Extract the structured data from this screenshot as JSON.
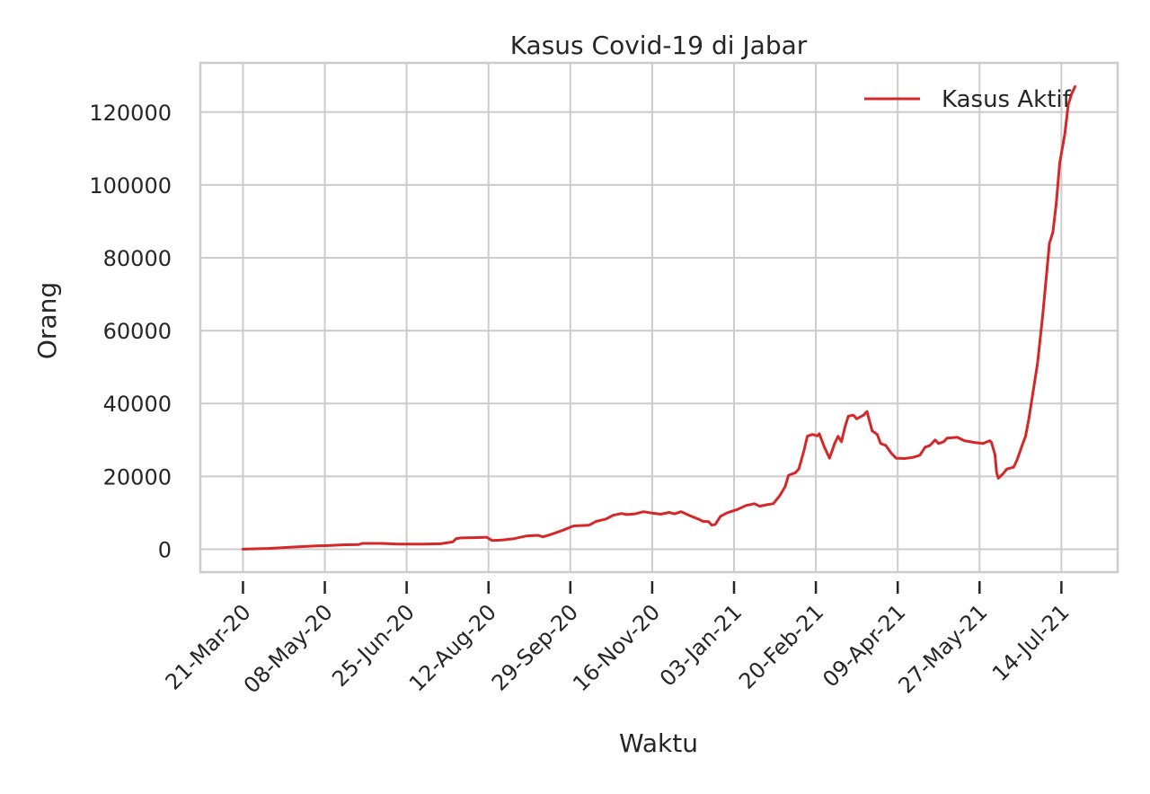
{
  "chart_data": {
    "type": "line",
    "title": "Kasus Covid-19 di Jabar",
    "xlabel": "Waktu",
    "ylabel": "Orang",
    "x_start": "2020-03-21",
    "x_end": "2021-07-22",
    "xlim": [
      "2020-02-25",
      "2021-08-16"
    ],
    "ylim": [
      -6300,
      133500
    ],
    "x_ticks": [
      "2020-03-21",
      "2020-05-08",
      "2020-06-25",
      "2020-08-12",
      "2020-09-29",
      "2020-11-16",
      "2021-01-03",
      "2021-02-20",
      "2021-04-09",
      "2021-05-27",
      "2021-07-14"
    ],
    "x_tick_labels": [
      "21-Mar-20",
      "08-May-20",
      "25-Jun-20",
      "12-Aug-20",
      "29-Sep-20",
      "16-Nov-20",
      "03-Jan-21",
      "20-Feb-21",
      "09-Apr-21",
      "27-May-21",
      "14-Jul-21"
    ],
    "y_ticks": [
      0,
      20000,
      40000,
      60000,
      80000,
      100000,
      120000
    ],
    "y_tick_labels": [
      "0",
      "20000",
      "40000",
      "60000",
      "80000",
      "100000",
      "120000"
    ],
    "grid": true,
    "legend": "top-right",
    "series": [
      {
        "name": "Kasus Aktif",
        "color": "#d62728",
        "points": [
          [
            "2020-03-21",
            0
          ],
          [
            "2020-04-05",
            200
          ],
          [
            "2020-04-20",
            600
          ],
          [
            "2020-05-03",
            900
          ],
          [
            "2020-05-10",
            1000
          ],
          [
            "2020-05-18",
            1200
          ],
          [
            "2020-05-28",
            1300
          ],
          [
            "2020-05-30",
            1600
          ],
          [
            "2020-06-10",
            1600
          ],
          [
            "2020-06-20",
            1400
          ],
          [
            "2020-07-05",
            1400
          ],
          [
            "2020-07-15",
            1500
          ],
          [
            "2020-07-22",
            2000
          ],
          [
            "2020-07-24",
            2900
          ],
          [
            "2020-07-27",
            3100
          ],
          [
            "2020-08-06",
            3200
          ],
          [
            "2020-08-11",
            3300
          ],
          [
            "2020-08-14",
            2400
          ],
          [
            "2020-08-20",
            2500
          ],
          [
            "2020-08-27",
            2900
          ],
          [
            "2020-09-03",
            3600
          ],
          [
            "2020-09-10",
            3800
          ],
          [
            "2020-09-13",
            3400
          ],
          [
            "2020-09-18",
            4100
          ],
          [
            "2020-09-24",
            5100
          ],
          [
            "2020-10-01",
            6400
          ],
          [
            "2020-10-10",
            6600
          ],
          [
            "2020-10-14",
            7600
          ],
          [
            "2020-10-20",
            8300
          ],
          [
            "2020-10-24",
            9300
          ],
          [
            "2020-10-29",
            9800
          ],
          [
            "2020-11-01",
            9500
          ],
          [
            "2020-11-06",
            9700
          ],
          [
            "2020-11-11",
            10300
          ],
          [
            "2020-11-16",
            9900
          ],
          [
            "2020-11-21",
            9600
          ],
          [
            "2020-11-26",
            10100
          ],
          [
            "2020-11-29",
            9700
          ],
          [
            "2020-12-03",
            10300
          ],
          [
            "2020-12-08",
            9200
          ],
          [
            "2020-12-13",
            8300
          ],
          [
            "2020-12-16",
            7600
          ],
          [
            "2020-12-19",
            7600
          ],
          [
            "2020-12-21",
            6600
          ],
          [
            "2020-12-23",
            6800
          ],
          [
            "2020-12-26",
            9000
          ],
          [
            "2020-12-30",
            10000
          ],
          [
            "2021-01-05",
            10900
          ],
          [
            "2021-01-10",
            12000
          ],
          [
            "2021-01-15",
            12500
          ],
          [
            "2021-01-18",
            11800
          ],
          [
            "2021-01-23",
            12300
          ],
          [
            "2021-01-26",
            12500
          ],
          [
            "2021-01-30",
            14800
          ],
          [
            "2021-02-02",
            17200
          ],
          [
            "2021-02-04",
            20300
          ],
          [
            "2021-02-08",
            21000
          ],
          [
            "2021-02-10",
            22000
          ],
          [
            "2021-02-13",
            27000
          ],
          [
            "2021-02-15",
            31000
          ],
          [
            "2021-02-18",
            31500
          ],
          [
            "2021-02-21",
            31100
          ],
          [
            "2021-02-22",
            31700
          ],
          [
            "2021-02-25",
            28000
          ],
          [
            "2021-02-28",
            25000
          ],
          [
            "2021-03-03",
            29000
          ],
          [
            "2021-03-05",
            31000
          ],
          [
            "2021-03-07",
            29500
          ],
          [
            "2021-03-09",
            33500
          ],
          [
            "2021-03-11",
            36500
          ],
          [
            "2021-03-14",
            36800
          ],
          [
            "2021-03-16",
            35800
          ],
          [
            "2021-03-20",
            36800
          ],
          [
            "2021-03-22",
            37800
          ],
          [
            "2021-03-25",
            32500
          ],
          [
            "2021-03-28",
            31500
          ],
          [
            "2021-03-30",
            29000
          ],
          [
            "2021-04-02",
            28500
          ],
          [
            "2021-04-05",
            26500
          ],
          [
            "2021-04-08",
            25000
          ],
          [
            "2021-04-13",
            24900
          ],
          [
            "2021-04-18",
            25200
          ],
          [
            "2021-04-22",
            25800
          ],
          [
            "2021-04-25",
            28000
          ],
          [
            "2021-04-28",
            28500
          ],
          [
            "2021-05-01",
            30000
          ],
          [
            "2021-05-03",
            29000
          ],
          [
            "2021-05-06",
            29500
          ],
          [
            "2021-05-08",
            30500
          ],
          [
            "2021-05-14",
            30700
          ],
          [
            "2021-05-18",
            29800
          ],
          [
            "2021-05-24",
            29300
          ],
          [
            "2021-05-29",
            29000
          ],
          [
            "2021-06-02",
            29800
          ],
          [
            "2021-06-03",
            29300
          ],
          [
            "2021-06-05",
            26000
          ],
          [
            "2021-06-06",
            21000
          ],
          [
            "2021-06-07",
            19500
          ],
          [
            "2021-06-10",
            20800
          ],
          [
            "2021-06-12",
            22000
          ],
          [
            "2021-06-16",
            22500
          ],
          [
            "2021-06-18",
            24500
          ],
          [
            "2021-06-21",
            28500
          ],
          [
            "2021-06-23",
            31000
          ],
          [
            "2021-06-25",
            36000
          ],
          [
            "2021-06-27",
            42000
          ],
          [
            "2021-06-30",
            51000
          ],
          [
            "2021-07-03",
            64000
          ],
          [
            "2021-07-05",
            74000
          ],
          [
            "2021-07-07",
            84000
          ],
          [
            "2021-07-09",
            87000
          ],
          [
            "2021-07-11",
            95000
          ],
          [
            "2021-07-13",
            106000
          ],
          [
            "2021-07-16",
            114000
          ],
          [
            "2021-07-18",
            122000
          ],
          [
            "2021-07-20",
            125000
          ],
          [
            "2021-07-22",
            127000
          ]
        ]
      }
    ]
  }
}
